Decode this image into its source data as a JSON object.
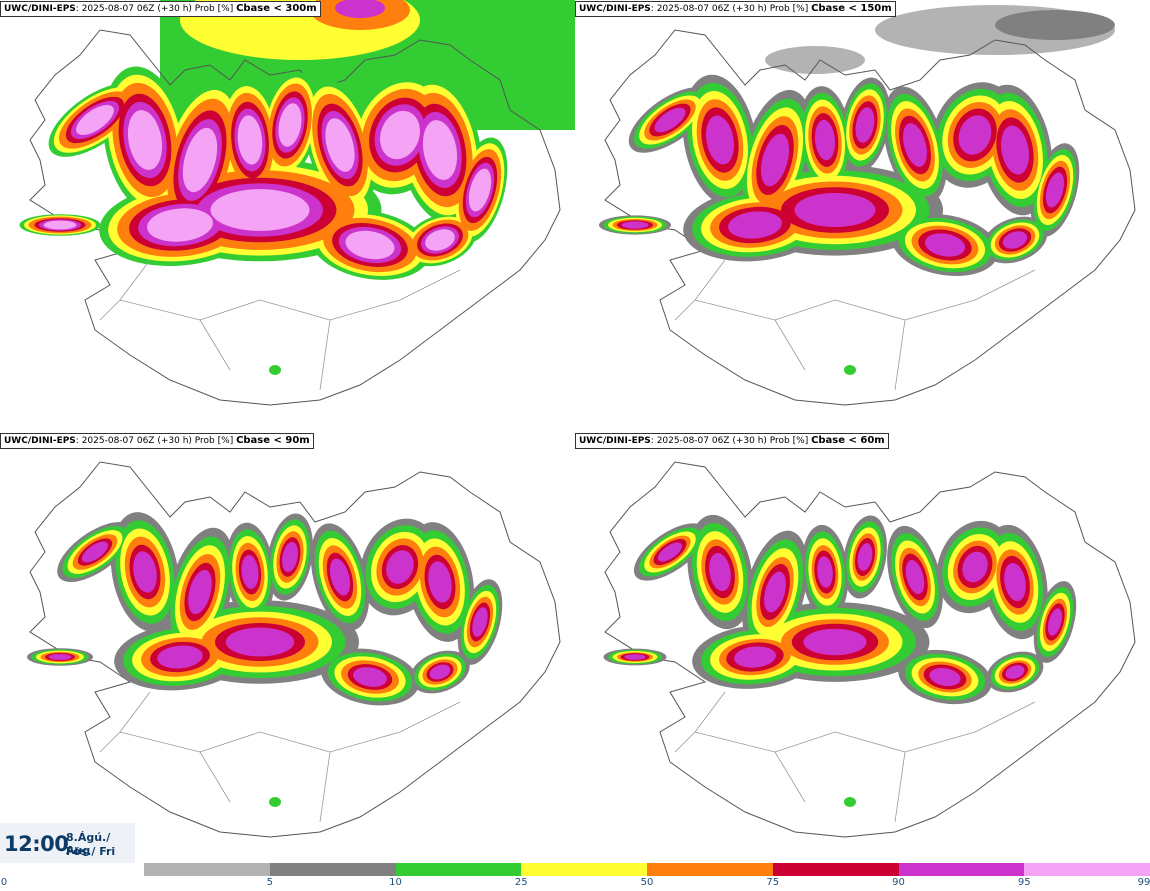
{
  "panels": [
    {
      "source": "UWC/DINI-EPS",
      "info": ": 2025-08-07 06Z (+30 h) Prob [%] ",
      "parameter": "Cbase < 300m"
    },
    {
      "source": "UWC/DINI-EPS",
      "info": ": 2025-08-07 06Z (+30 h) Prob [%] ",
      "parameter": "Cbase < 150m"
    },
    {
      "source": "UWC/DINI-EPS",
      "info": ": 2025-08-07 06Z (+30 h) Prob [%] ",
      "parameter": "Cbase < 90m"
    },
    {
      "source": "UWC/DINI-EPS",
      "info": ": 2025-08-07 06Z (+30 h) Prob [%] ",
      "parameter": "Cbase < 60m"
    }
  ],
  "valid_time": {
    "time": "12:00",
    "date_line1": "8.Ágú./ Aug",
    "date_line2": "Fös./ Fri"
  },
  "colorbar": {
    "ticks": [
      "0",
      "5",
      "10",
      "25",
      "50",
      "75",
      "90",
      "95",
      "99"
    ],
    "colors": [
      "#b3b3b3",
      "#808080",
      "#33cc33",
      "#ffff33",
      "#ff7f0e",
      "#cc0033",
      "#cc33cc",
      "#f5a3f5"
    ]
  }
}
